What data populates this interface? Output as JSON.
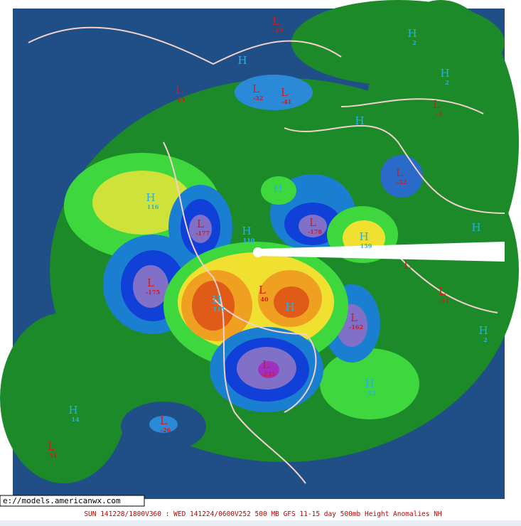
{
  "map": {
    "url": "e://models.americanwx.com",
    "caption": "SUN 141228/1800V360 : WED 141224/0600V252  500 MB GFS 11-15 day 500mb Height Anomalies NH",
    "labels": [
      {
        "type": "L",
        "value": -13
      },
      {
        "type": "H",
        "value": 2
      },
      {
        "type": "H",
        "value": 2
      },
      {
        "type": "L",
        "value": 13
      },
      {
        "type": "L",
        "value": -32
      },
      {
        "type": "L",
        "value": -41
      },
      {
        "type": "H"
      },
      {
        "type": "L",
        "value": -3
      },
      {
        "type": "H"
      },
      {
        "type": "L",
        "value": -32
      },
      {
        "type": "H",
        "value": 116
      },
      {
        "type": "H"
      },
      {
        "type": "L",
        "value": -177
      },
      {
        "type": "L",
        "value": -178
      },
      {
        "type": "H",
        "value": 110
      },
      {
        "type": "H",
        "value": 159
      },
      {
        "type": "H"
      },
      {
        "type": "L",
        "value": -175
      },
      {
        "type": "L"
      },
      {
        "type": "L",
        "value": 40
      },
      {
        "type": "L",
        "value": -11
      },
      {
        "type": "H",
        "value": 115
      },
      {
        "type": "H"
      },
      {
        "type": "L",
        "value": -162
      },
      {
        "type": "H",
        "value": 2
      },
      {
        "type": "L",
        "value": -233
      },
      {
        "type": "H",
        "value": 22
      },
      {
        "type": "H",
        "value": 14
      },
      {
        "type": "L",
        "value": -26
      },
      {
        "type": "L",
        "value": 31
      }
    ]
  }
}
